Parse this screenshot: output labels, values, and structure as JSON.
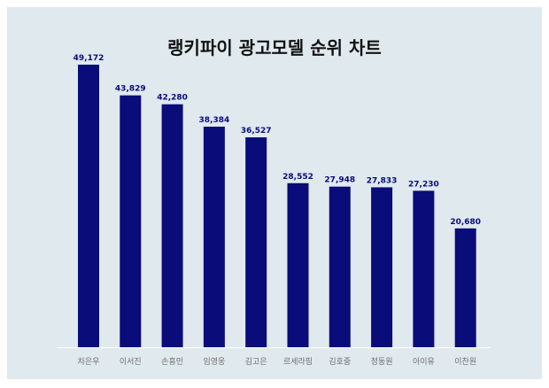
{
  "chart_data": {
    "type": "bar",
    "title": "랭키파이 광고모델 순위 차트",
    "categories": [
      "차은우",
      "이서진",
      "손흥민",
      "임영웅",
      "김고은",
      "르세라핌",
      "김호중",
      "정동원",
      "아이유",
      "이찬원"
    ],
    "values": [
      49172,
      43829,
      42280,
      38384,
      36527,
      28552,
      27948,
      27833,
      27230,
      20680
    ],
    "value_labels": [
      "49,172",
      "43,829",
      "42,280",
      "38,384",
      "36,527",
      "28,552",
      "27,948",
      "27,833",
      "27,230",
      "20,680"
    ],
    "xlabel": "",
    "ylabel": "",
    "ylim": [
      0,
      49172
    ],
    "grid": false,
    "legend": "none",
    "colors": {
      "bar": "#0a0c79",
      "value_label": "#0a0c79",
      "category_label": "#6f6f6f",
      "background": "#dfe9ee",
      "baseline": "#ffffff"
    }
  }
}
